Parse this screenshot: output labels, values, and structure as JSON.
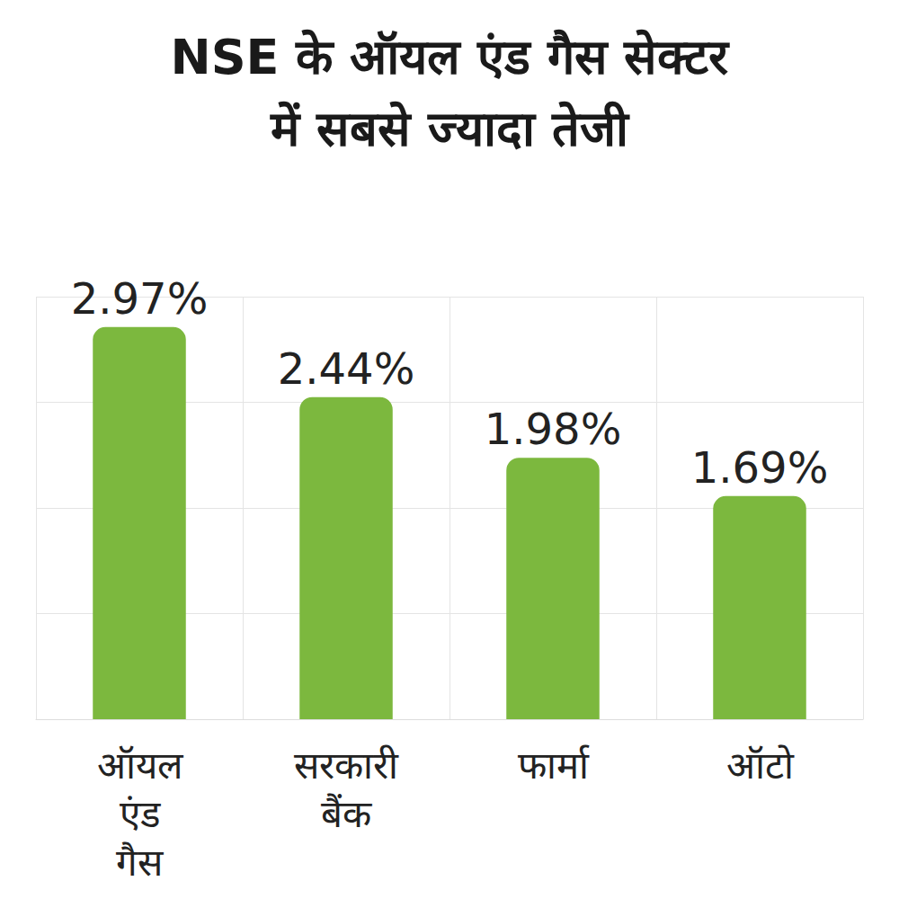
{
  "chart_data": {
    "type": "bar",
    "title": "NSE के ऑयल एंड गैस सेक्टर में सबसे ज्यादा तेजी",
    "categories": [
      "ऑयल एंड गैस",
      "सरकारी बैंक",
      "फार्मा",
      "ऑटो"
    ],
    "values": [
      2.97,
      2.44,
      1.98,
      1.69
    ],
    "value_labels": [
      "2.97%",
      "2.44%",
      "1.98%",
      "1.69%"
    ],
    "color": "#7cb83e",
    "ylim": [
      0,
      3.2
    ],
    "yticks": [
      0,
      0.8,
      1.6,
      2.4,
      3.2
    ],
    "grid": true,
    "data_labels": true,
    "tick_labels": "x"
  }
}
